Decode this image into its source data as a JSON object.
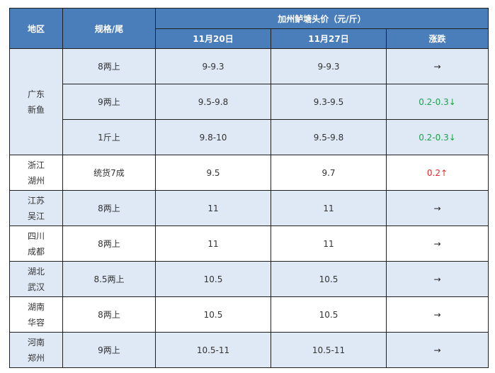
{
  "table": {
    "headers": {
      "region": "地区",
      "spec": "规格/尾",
      "price_group": "加州鲈塘头价（元/斤）",
      "date1": "11月20日",
      "date2": "11月27日",
      "change": "涨跌"
    },
    "groups": [
      {
        "region_line1": "广东",
        "region_line2": "新鱼",
        "rows": [
          {
            "spec": "8两上",
            "p1": "9-9.3",
            "p2": "9-9.3",
            "change": "→",
            "trend": "flat"
          },
          {
            "spec": "9两上",
            "p1": "9.5-9.8",
            "p2": "9.3-9.5",
            "change": "0.2-0.3↓",
            "trend": "down"
          },
          {
            "spec": "1斤上",
            "p1": "9.8-10",
            "p2": "9.5-9.8",
            "change": "0.2-0.3↓",
            "trend": "down"
          }
        ]
      },
      {
        "region_line1": "浙江",
        "region_line2": "湖州",
        "rows": [
          {
            "spec": "统货7成",
            "p1": "9.5",
            "p2": "9.7",
            "change": "0.2↑",
            "trend": "up"
          }
        ]
      },
      {
        "region_line1": "江苏",
        "region_line2": "吴江",
        "rows": [
          {
            "spec": "8两上",
            "p1": "11",
            "p2": "11",
            "change": "→",
            "trend": "flat"
          }
        ]
      },
      {
        "region_line1": "四川",
        "region_line2": "成都",
        "rows": [
          {
            "spec": "8两上",
            "p1": "11",
            "p2": "11",
            "change": "→",
            "trend": "flat"
          }
        ]
      },
      {
        "region_line1": "湖北",
        "region_line2": "武汉",
        "rows": [
          {
            "spec": "8.5两上",
            "p1": "10.5",
            "p2": "10.5",
            "change": "→",
            "trend": "flat"
          }
        ]
      },
      {
        "region_line1": "湖南",
        "region_line2": "华容",
        "rows": [
          {
            "spec": "8两上",
            "p1": "10.5",
            "p2": "10.5",
            "change": "→",
            "trend": "flat"
          }
        ]
      },
      {
        "region_line1": "河南",
        "region_line2": "郑州",
        "rows": [
          {
            "spec": "9两上",
            "p1": "10.5-11",
            "p2": "10.5-11",
            "change": "→",
            "trend": "flat"
          }
        ]
      }
    ]
  }
}
